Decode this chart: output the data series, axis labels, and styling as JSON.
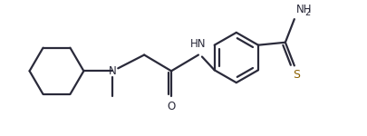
{
  "bg_color": "#ffffff",
  "line_color": "#2a2a3a",
  "sulfur_color": "#8B6000",
  "bond_lw": 1.6,
  "figsize": [
    4.06,
    1.5
  ],
  "dpi": 100,
  "xlim": [
    0,
    4.06
  ],
  "ylim": [
    0,
    1.5
  ]
}
